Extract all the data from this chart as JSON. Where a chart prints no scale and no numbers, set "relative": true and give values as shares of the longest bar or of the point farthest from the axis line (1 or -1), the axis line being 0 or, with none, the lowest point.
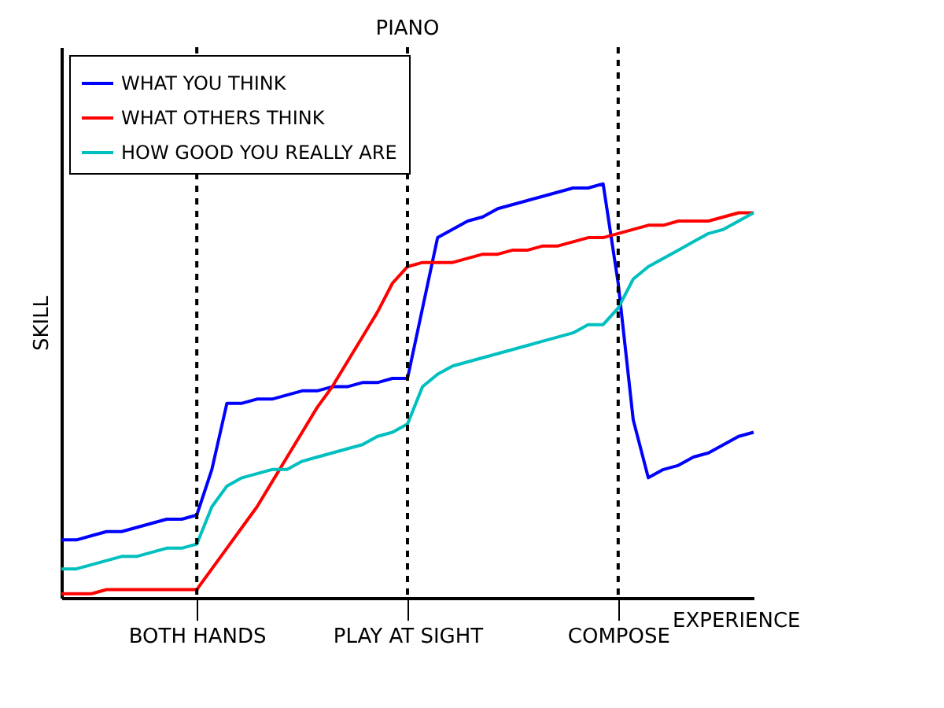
{
  "chart_data": {
    "type": "line",
    "title": "PIANO",
    "xlabel": "EXPERIENCE",
    "ylabel": "SKILL",
    "relative": true,
    "legend": "top left",
    "tick_labels": "x",
    "line_style": "solid",
    "categories": [
      null,
      null,
      null,
      null,
      null,
      null,
      null,
      null,
      null,
      "BOTH HANDS",
      null,
      null,
      null,
      null,
      null,
      null,
      null,
      null,
      null,
      null,
      null,
      null,
      null,
      "PLAY AT SIGHT",
      null,
      null,
      null,
      null,
      null,
      null,
      null,
      null,
      null,
      null,
      null,
      null,
      null,
      "COMPOSE",
      null,
      null,
      null,
      null,
      null,
      null,
      null,
      null,
      null
    ],
    "series": [
      {
        "name": "WHAT YOU THINK",
        "color": "#0000ff",
        "values": [
          0.14,
          0.14,
          0.15,
          0.16,
          0.16,
          0.17,
          0.18,
          0.19,
          0.19,
          0.2,
          0.31,
          0.47,
          0.47,
          0.48,
          0.48,
          0.49,
          0.5,
          0.5,
          0.51,
          0.51,
          0.52,
          0.52,
          0.53,
          0.53,
          0.7,
          0.87,
          0.89,
          0.91,
          0.92,
          0.94,
          0.95,
          0.96,
          0.97,
          0.98,
          0.99,
          0.99,
          1.0,
          0.76,
          0.43,
          0.29,
          0.31,
          0.32,
          0.34,
          0.35,
          0.37,
          0.39,
          0.4
        ]
      },
      {
        "name": "WHAT OTHERS THINK",
        "color": "#ff0000",
        "values": [
          0.01,
          0.01,
          0.01,
          0.02,
          0.02,
          0.02,
          0.02,
          0.02,
          0.02,
          0.02,
          0.07,
          0.12,
          0.17,
          0.22,
          0.28,
          0.34,
          0.4,
          0.46,
          0.51,
          0.57,
          0.63,
          0.69,
          0.76,
          0.8,
          0.81,
          0.81,
          0.81,
          0.82,
          0.83,
          0.83,
          0.84,
          0.84,
          0.85,
          0.85,
          0.86,
          0.87,
          0.87,
          0.88,
          0.89,
          0.9,
          0.9,
          0.91,
          0.91,
          0.91,
          0.92,
          0.93,
          0.93
        ]
      },
      {
        "name": "HOW GOOD YOU REALLY ARE",
        "color": "#00bfbf",
        "values": [
          0.07,
          0.07,
          0.08,
          0.09,
          0.1,
          0.1,
          0.11,
          0.12,
          0.12,
          0.13,
          0.22,
          0.27,
          0.29,
          0.3,
          0.31,
          0.31,
          0.33,
          0.34,
          0.35,
          0.36,
          0.37,
          0.39,
          0.4,
          0.42,
          0.51,
          0.54,
          0.56,
          0.57,
          0.58,
          0.59,
          0.6,
          0.61,
          0.62,
          0.63,
          0.64,
          0.66,
          0.66,
          0.7,
          0.77,
          0.8,
          0.82,
          0.84,
          0.86,
          0.88,
          0.89,
          0.91,
          0.93
        ]
      }
    ],
    "ref_lines": [
      {
        "axis": "x",
        "value": "BOTH HANDS",
        "color": "#000000",
        "line_style": "dashed"
      },
      {
        "axis": "x",
        "value": "PLAY AT SIGHT",
        "color": "#000000",
        "line_style": "dashed"
      },
      {
        "axis": "x",
        "value": "COMPOSE",
        "color": "#000000",
        "line_style": "dashed"
      }
    ]
  }
}
